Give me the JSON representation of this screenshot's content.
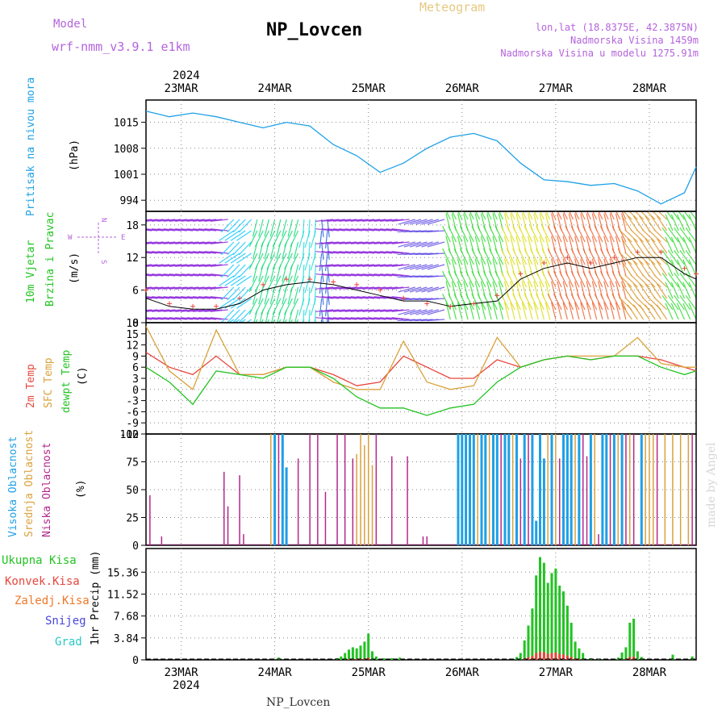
{
  "header": {
    "model_label": "Model",
    "model_name": "wrf-nmm_v3.9.1 e1km",
    "station": "NP_Lovcen",
    "meteogram_label": "Meteogram",
    "lonlat": "lon,lat (18.8375E, 42.3875N)",
    "elevation": "Nadmorska Visina 1459m",
    "model_elevation": "Nadmorska Visina u modelu 1275.91m",
    "year": "2024",
    "footer_station": "NP_Lovcen",
    "credit": "made by Angel"
  },
  "colors": {
    "pressure": "#1ea0e6",
    "temp2m": "#e8463c",
    "sfc_temp": "#d9a23c",
    "dewpoint": "#22c322",
    "high_cloud": "#1ea0e6",
    "mid_cloud": "#d9a23c",
    "low_cloud": "#b4288c",
    "total_precip": "#22c322",
    "conv_precip": "#e8463c",
    "frozen_precip": "#f07828",
    "snow": "#4646dc",
    "graupel": "#28c8c8",
    "purple_text": "#b464dc",
    "gold_text": "#e6c882"
  },
  "chart_data": [
    {
      "id": "pressure",
      "type": "line",
      "ylabel_left": "Pritisak na nivou mora",
      "unit": "(hPa)",
      "ylim": [
        991,
        1021
      ],
      "yticks": [
        "994",
        "1001",
        "1008",
        "1015"
      ],
      "x_start": "2024-03-22T15:00",
      "x_end": "2024-03-28T12:00",
      "xtick_labels": [
        "23MAR",
        "24MAR",
        "25MAR",
        "26MAR",
        "27MAR",
        "28MAR"
      ],
      "x": [
        0,
        6,
        12,
        18,
        24,
        30,
        36,
        42,
        48,
        54,
        60,
        66,
        72,
        78,
        84,
        90,
        96,
        102,
        108,
        114,
        120,
        126,
        132,
        138,
        141
      ],
      "values": [
        1018,
        1016.5,
        1017.5,
        1016.5,
        1015,
        1013.5,
        1015,
        1014,
        1009,
        1006,
        1001.5,
        1004,
        1008,
        1011,
        1012,
        1010,
        1004,
        999.5,
        999,
        998,
        998.5,
        996.5,
        993,
        996,
        1003
      ]
    },
    {
      "id": "wind",
      "type": "line",
      "ylabel_left": "10m Vjetar",
      "ylabel_left2": "Brzina i Pravac",
      "unit": "(m/s)",
      "compass": {
        "n": "N",
        "s": "S",
        "w": "W",
        "e": "E"
      },
      "ylim": [
        0,
        20.5
      ],
      "yticks": [
        "0",
        "6",
        "12",
        "18"
      ],
      "x": [
        0,
        6,
        12,
        18,
        24,
        30,
        36,
        42,
        48,
        54,
        60,
        66,
        72,
        78,
        84,
        90,
        96,
        102,
        108,
        114,
        120,
        126,
        132,
        138,
        141
      ],
      "speed": [
        4.5,
        3,
        2.5,
        2.5,
        3.5,
        6,
        7,
        7.5,
        7,
        6,
        5,
        4,
        4,
        3,
        3.5,
        4,
        8,
        10,
        11,
        10,
        11,
        12,
        12,
        9,
        8
      ],
      "gust_marks": [
        6,
        3.5,
        3,
        3,
        4.5,
        7,
        8,
        8,
        7.5,
        7,
        6,
        4.5,
        3.5,
        3,
        3.5,
        5,
        9,
        11,
        12,
        11,
        12,
        13,
        13,
        10,
        9
      ]
    },
    {
      "id": "temperature",
      "type": "line",
      "ylabel_left": "2m Temp",
      "ylabel_left2": "SFC Temp",
      "ylabel_left3": "dewpt Temp",
      "unit": "(C)",
      "ylim": [
        -12,
        18
      ],
      "yticks": [
        "-12",
        "-9",
        "-6",
        "-3",
        "0",
        "3",
        "6",
        "9",
        "12",
        "15",
        "18"
      ],
      "x": [
        0,
        6,
        12,
        18,
        24,
        30,
        36,
        42,
        48,
        54,
        60,
        66,
        72,
        78,
        84,
        90,
        96,
        102,
        108,
        114,
        120,
        126,
        132,
        138,
        141
      ],
      "series": [
        {
          "name": "2m Temp",
          "values": [
            10,
            6,
            4,
            9,
            4,
            4,
            6,
            6,
            4,
            1,
            2,
            9,
            6,
            3,
            3,
            8,
            6,
            8,
            9,
            8,
            9,
            9,
            8,
            6,
            5
          ]
        },
        {
          "name": "SFC Temp",
          "values": [
            17,
            5,
            0,
            16,
            4,
            4,
            6,
            6,
            2,
            0,
            0,
            13,
            2,
            0,
            1,
            14,
            6,
            8,
            9,
            9,
            9,
            14,
            7,
            6,
            6
          ]
        },
        {
          "name": "dewpt Temp",
          "values": [
            6,
            2,
            -4,
            5,
            4,
            3,
            6,
            6,
            3,
            -2,
            -5,
            -5,
            -7,
            -5,
            -4,
            2,
            6,
            8,
            9,
            8,
            9,
            9,
            6,
            4,
            5
          ]
        }
      ]
    },
    {
      "id": "clouds",
      "type": "bar",
      "ylabel_left": "Visoka Oblacnost",
      "ylabel_left2": "Srednja Oblacnost",
      "ylabel_left3": "Niska Oblacnost",
      "unit": "(%)",
      "ylim": [
        0,
        100
      ],
      "yticks": [
        "0",
        "25",
        "50",
        "75",
        "100"
      ],
      "bars": [
        {
          "x": 1,
          "h": 45,
          "layer": "low"
        },
        {
          "x": 4,
          "h": 8,
          "layer": "low"
        },
        {
          "x": 20,
          "h": 66,
          "layer": "low"
        },
        {
          "x": 21,
          "h": 35,
          "layer": "low"
        },
        {
          "x": 24,
          "h": 63,
          "layer": "low"
        },
        {
          "x": 25,
          "h": 10,
          "layer": "low"
        },
        {
          "x": 32,
          "h": 100,
          "layer": "mid"
        },
        {
          "x": 33,
          "h": 100,
          "layer": "high"
        },
        {
          "x": 34,
          "h": 100,
          "layer": "low"
        },
        {
          "x": 35,
          "h": 100,
          "layer": "high"
        },
        {
          "x": 36,
          "h": 70,
          "layer": "high"
        },
        {
          "x": 39,
          "h": 78,
          "layer": "low"
        },
        {
          "x": 42,
          "h": 100,
          "layer": "low"
        },
        {
          "x": 44,
          "h": 100,
          "layer": "low"
        },
        {
          "x": 46,
          "h": 48,
          "layer": "low"
        },
        {
          "x": 49,
          "h": 100,
          "layer": "low"
        },
        {
          "x": 51,
          "h": 100,
          "layer": "low"
        },
        {
          "x": 53,
          "h": 78,
          "layer": "low"
        },
        {
          "x": 54,
          "h": 82,
          "layer": "mid"
        },
        {
          "x": 55,
          "h": 100,
          "layer": "mid"
        },
        {
          "x": 56,
          "h": 90,
          "layer": "mid"
        },
        {
          "x": 57,
          "h": 100,
          "layer": "mid"
        },
        {
          "x": 58,
          "h": 72,
          "layer": "mid"
        },
        {
          "x": 59,
          "h": 100,
          "layer": "low"
        },
        {
          "x": 63,
          "h": 80,
          "layer": "low"
        },
        {
          "x": 67,
          "h": 80,
          "layer": "low"
        },
        {
          "x": 71,
          "h": 8,
          "layer": "low"
        },
        {
          "x": 72,
          "h": 8,
          "layer": "low"
        },
        {
          "x": 80,
          "h": 100,
          "layer": "high"
        },
        {
          "x": 81,
          "h": 100,
          "layer": "high"
        },
        {
          "x": 82,
          "h": 100,
          "layer": "high"
        },
        {
          "x": 83,
          "h": 100,
          "layer": "high"
        },
        {
          "x": 84,
          "h": 100,
          "layer": "high"
        },
        {
          "x": 85,
          "h": 100,
          "layer": "mid"
        },
        {
          "x": 86,
          "h": 100,
          "layer": "high"
        },
        {
          "x": 87,
          "h": 100,
          "layer": "high"
        },
        {
          "x": 88,
          "h": 100,
          "layer": "mid"
        },
        {
          "x": 89,
          "h": 100,
          "layer": "high"
        },
        {
          "x": 90,
          "h": 100,
          "layer": "high"
        },
        {
          "x": 91,
          "h": 100,
          "layer": "low"
        },
        {
          "x": 92,
          "h": 100,
          "layer": "high"
        },
        {
          "x": 93,
          "h": 100,
          "layer": "high"
        },
        {
          "x": 94,
          "h": 100,
          "layer": "mid"
        },
        {
          "x": 95,
          "h": 100,
          "layer": "high"
        },
        {
          "x": 96,
          "h": 78,
          "layer": "low"
        },
        {
          "x": 97,
          "h": 100,
          "layer": "high"
        },
        {
          "x": 98,
          "h": 100,
          "layer": "low"
        },
        {
          "x": 99,
          "h": 100,
          "layer": "high"
        },
        {
          "x": 100,
          "h": 22,
          "layer": "high"
        },
        {
          "x": 101,
          "h": 100,
          "layer": "high"
        },
        {
          "x": 102,
          "h": 78,
          "layer": "high"
        },
        {
          "x": 103,
          "h": 100,
          "layer": "mid"
        },
        {
          "x": 104,
          "h": 100,
          "layer": "high"
        },
        {
          "x": 105,
          "h": 100,
          "layer": "mid"
        },
        {
          "x": 106,
          "h": 78,
          "layer": "low"
        },
        {
          "x": 107,
          "h": 100,
          "layer": "high"
        },
        {
          "x": 108,
          "h": 100,
          "layer": "high"
        },
        {
          "x": 109,
          "h": 100,
          "layer": "high"
        },
        {
          "x": 110,
          "h": 100,
          "layer": "mid"
        },
        {
          "x": 111,
          "h": 100,
          "layer": "high"
        },
        {
          "x": 112,
          "h": 100,
          "layer": "low"
        },
        {
          "x": 113,
          "h": 80,
          "layer": "low"
        },
        {
          "x": 114,
          "h": 100,
          "layer": "high"
        },
        {
          "x": 115,
          "h": 100,
          "layer": "mid"
        },
        {
          "x": 116,
          "h": 10,
          "layer": "low"
        },
        {
          "x": 117,
          "h": 100,
          "layer": "high"
        },
        {
          "x": 118,
          "h": 100,
          "layer": "high"
        },
        {
          "x": 119,
          "h": 100,
          "layer": "low"
        },
        {
          "x": 120,
          "h": 100,
          "layer": "high"
        },
        {
          "x": 121,
          "h": 100,
          "layer": "mid"
        },
        {
          "x": 122,
          "h": 100,
          "layer": "high"
        },
        {
          "x": 123,
          "h": 100,
          "layer": "low"
        },
        {
          "x": 124,
          "h": 100,
          "layer": "mid"
        },
        {
          "x": 125,
          "h": 100,
          "layer": "low"
        },
        {
          "x": 127,
          "h": 100,
          "layer": "high"
        },
        {
          "x": 128,
          "h": 100,
          "layer": "mid"
        },
        {
          "x": 129,
          "h": 100,
          "layer": "mid"
        },
        {
          "x": 130,
          "h": 100,
          "layer": "mid"
        },
        {
          "x": 131,
          "h": 100,
          "layer": "low"
        },
        {
          "x": 133,
          "h": 100,
          "layer": "mid"
        },
        {
          "x": 135,
          "h": 100,
          "layer": "mid"
        },
        {
          "x": 137,
          "h": 100,
          "layer": "mid"
        },
        {
          "x": 139,
          "h": 100,
          "layer": "mid"
        },
        {
          "x": 140,
          "h": 100,
          "layer": "low"
        }
      ]
    },
    {
      "id": "precip",
      "type": "bar",
      "legend": [
        "Ukupna Kisa",
        "Konvek.Kisa",
        "Zaledj.Kisa",
        "Snijeg",
        "Grad"
      ],
      "ylabel": "1hr Precip (mm)",
      "ylim": [
        0,
        19.5
      ],
      "yticks": [
        "0",
        "3.84",
        "7.68",
        "11.52",
        "15.36"
      ],
      "bars": [
        {
          "x": 34,
          "v": 0.4
        },
        {
          "x": 49,
          "v": 0.3
        },
        {
          "x": 50,
          "v": 0.6
        },
        {
          "x": 51,
          "v": 1.2
        },
        {
          "x": 52,
          "v": 1.8
        },
        {
          "x": 53,
          "v": 2.2
        },
        {
          "x": 54,
          "v": 2
        },
        {
          "x": 55,
          "v": 2.5
        },
        {
          "x": 56,
          "v": 3.2
        },
        {
          "x": 57,
          "v": 4.6
        },
        {
          "x": 58,
          "v": 1.5
        },
        {
          "x": 59,
          "v": 0.6
        },
        {
          "x": 61,
          "v": 0.3
        },
        {
          "x": 63,
          "v": 0.3
        },
        {
          "x": 65,
          "v": 0.4
        },
        {
          "x": 95,
          "v": 0.5
        },
        {
          "x": 96,
          "v": 1.2
        },
        {
          "x": 97,
          "v": 3.4
        },
        {
          "x": 98,
          "v": 6
        },
        {
          "x": 99,
          "v": 9
        },
        {
          "x": 100,
          "v": 14.8
        },
        {
          "x": 101,
          "v": 18
        },
        {
          "x": 102,
          "v": 17
        },
        {
          "x": 103,
          "v": 13.5
        },
        {
          "x": 104,
          "v": 15.2
        },
        {
          "x": 105,
          "v": 16
        },
        {
          "x": 106,
          "v": 13
        },
        {
          "x": 107,
          "v": 12
        },
        {
          "x": 108,
          "v": 9.5
        },
        {
          "x": 109,
          "v": 6.5
        },
        {
          "x": 110,
          "v": 3.2
        },
        {
          "x": 111,
          "v": 2
        },
        {
          "x": 112,
          "v": 1.2
        },
        {
          "x": 114,
          "v": 0.3
        },
        {
          "x": 116,
          "v": 0.2
        },
        {
          "x": 121,
          "v": 0.4
        },
        {
          "x": 122,
          "v": 1.3
        },
        {
          "x": 123,
          "v": 2.2
        },
        {
          "x": 124,
          "v": 6.5
        },
        {
          "x": 125,
          "v": 7.2
        },
        {
          "x": 126,
          "v": 1.5
        },
        {
          "x": 127,
          "v": 0.5
        },
        {
          "x": 135,
          "v": 0.9
        },
        {
          "x": 140,
          "v": 0.6
        }
      ]
    }
  ]
}
